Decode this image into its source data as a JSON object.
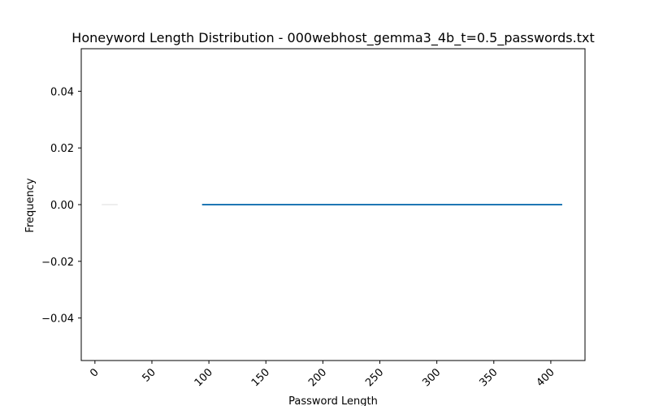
{
  "chart_data": {
    "type": "line",
    "title": "Honeyword Length Distribution - 000webhost_gemma3_4b_t=0.5_passwords.txt",
    "xlabel": "Password Length",
    "ylabel": "Frequency",
    "xlim": [
      -12,
      430
    ],
    "ylim": [
      -0.055,
      0.055
    ],
    "xticks": [
      0,
      50,
      100,
      150,
      200,
      250,
      300,
      350,
      400
    ],
    "yticks": [
      0.04,
      0.02,
      0.0,
      -0.02,
      -0.04
    ],
    "ytick_labels": [
      "0.04",
      "0.02",
      "0.00",
      "−0.02",
      "−0.04"
    ],
    "grid": false,
    "series": [
      {
        "color": "#e8e8e8",
        "x": [
          6,
          20
        ],
        "y": [
          0,
          0
        ]
      },
      {
        "color": "#1f77b4",
        "x": [
          94,
          410
        ],
        "y": [
          0,
          0
        ]
      }
    ]
  }
}
